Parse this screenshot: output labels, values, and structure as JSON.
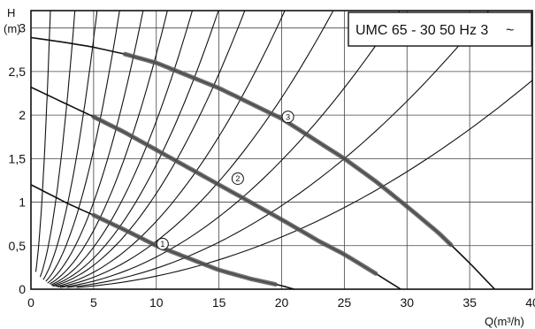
{
  "chart_data": {
    "type": "line",
    "title": "UMC 65 - 30  50 Hz 3",
    "title_symbol": "~",
    "ylabel": "H",
    "ylabel_unit": "(m)",
    "xlabel": "Q(m³/h)",
    "xlim": [
      0,
      40
    ],
    "ylim": [
      0,
      3.2
    ],
    "x_ticks": [
      0,
      5,
      10,
      15,
      20,
      25,
      30,
      35,
      40
    ],
    "x_tick_labels": [
      "0",
      "5",
      "10",
      "15",
      "20",
      "25",
      "30",
      "35",
      "40"
    ],
    "y_ticks": [
      0,
      0.5,
      1,
      1.5,
      2,
      2.5,
      3
    ],
    "y_tick_labels": [
      "0",
      "0,5",
      "1",
      "1,5",
      "2",
      "2,5",
      "3"
    ],
    "grid": true,
    "series": [
      {
        "name": "1",
        "color": "#111111",
        "x": [
          0,
          3,
          5,
          7.5,
          10,
          12.5,
          15,
          17.5,
          20,
          21
        ],
        "y": [
          1.2,
          0.98,
          0.85,
          0.68,
          0.5,
          0.36,
          0.22,
          0.12,
          0.04,
          0
        ],
        "highlight_range": [
          5,
          19.5
        ],
        "marker_x": 10.5,
        "marker_y": 0.52
      },
      {
        "name": "2",
        "color": "#111111",
        "x": [
          0,
          5,
          7.5,
          10,
          15,
          20,
          23,
          25,
          27.5,
          29.5
        ],
        "y": [
          2.32,
          1.98,
          1.8,
          1.6,
          1.2,
          0.8,
          0.55,
          0.4,
          0.18,
          0
        ],
        "highlight_range": [
          5,
          27.5
        ],
        "marker_x": 16.5,
        "marker_y": 1.27
      },
      {
        "name": "3",
        "color": "#111111",
        "x": [
          0,
          2.5,
          5,
          7.5,
          10,
          15,
          20,
          25,
          27.5,
          30,
          32.5,
          35,
          37
        ],
        "y": [
          2.89,
          2.84,
          2.78,
          2.7,
          2.6,
          2.31,
          1.96,
          1.5,
          1.24,
          0.95,
          0.65,
          0.3,
          0
        ],
        "highlight_range": [
          7.5,
          33.5
        ],
        "marker_x": 20.5,
        "marker_y": 1.98
      }
    ],
    "system_curves": {
      "color": "#111111",
      "x_max": 40,
      "y_max": 3.2,
      "curves": [
        {
          "k": 1.333,
          "c": 0.2
        },
        {
          "k": 0.26,
          "c": 0.14
        },
        {
          "k": 0.115,
          "c": 0.11
        },
        {
          "k": 0.064,
          "c": 0.09
        },
        {
          "k": 0.04,
          "c": 0.07
        },
        {
          "k": 0.027,
          "c": 0.06
        },
        {
          "k": 0.0193,
          "c": 0.05
        },
        {
          "k": 0.0143,
          "c": 0.04
        },
        {
          "k": 0.011,
          "c": 0.035
        },
        {
          "k": 0.0078,
          "c": 0.03
        },
        {
          "k": 0.0055,
          "c": 0.025
        },
        {
          "k": 0.0037,
          "c": 0.02
        },
        {
          "k": 0.0024,
          "c": 0.02
        },
        {
          "k": 0.0015,
          "c": 0.02
        }
      ]
    }
  }
}
